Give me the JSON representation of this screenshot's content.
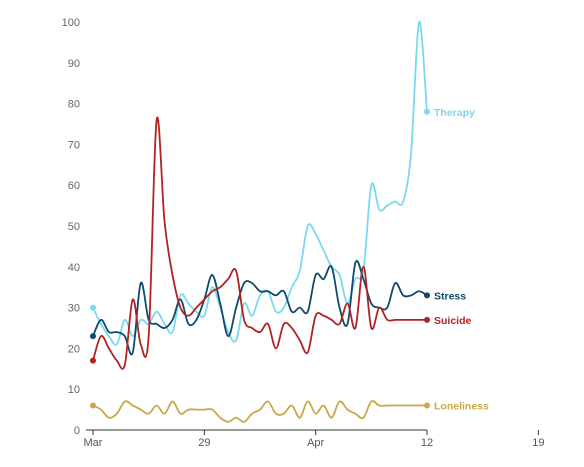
{
  "chart_data": {
    "type": "line",
    "title": "",
    "xlabel": "",
    "ylabel": "",
    "ylim": [
      0,
      100
    ],
    "y_ticks": [
      0,
      10,
      20,
      30,
      40,
      50,
      60,
      70,
      80,
      90,
      100
    ],
    "x_ticks": [
      {
        "day": 0,
        "label": "Mar"
      },
      {
        "day": 14,
        "label": "29"
      },
      {
        "day": 28,
        "label": "Apr"
      },
      {
        "day": 42,
        "label": "12"
      },
      {
        "day": 56,
        "label": "19"
      }
    ],
    "grid": false,
    "legend": "labels at line ends (right)",
    "series": [
      {
        "name": "Therapy",
        "color": "#7ad9ef",
        "values": [
          30,
          26,
          23,
          21,
          27,
          23,
          27,
          26,
          29,
          26,
          24,
          33,
          31,
          29,
          28,
          35,
          30,
          24,
          22,
          31,
          28,
          33,
          34,
          29,
          30,
          35,
          39,
          50,
          48,
          44,
          40,
          38,
          31,
          37,
          39,
          60,
          54,
          55,
          56,
          56,
          68,
          100,
          78
        ]
      },
      {
        "name": "Stress",
        "color": "#0d4a6b",
        "values": [
          23,
          27,
          24,
          24,
          23,
          19,
          36,
          27,
          26,
          25,
          27,
          32,
          26,
          27,
          32,
          38,
          31,
          23,
          30,
          36,
          36,
          34,
          34,
          33,
          34,
          29,
          30,
          29,
          38,
          37,
          40,
          30,
          26,
          41,
          37,
          31,
          30,
          30,
          36,
          33,
          33,
          34,
          33
        ]
      },
      {
        "name": "Suicide",
        "color": "#b22222",
        "values": [
          17,
          23,
          20,
          17,
          16,
          32,
          21,
          23,
          76,
          51,
          38,
          30,
          28,
          30,
          32,
          34,
          35,
          37,
          39,
          27,
          25,
          24,
          26,
          20,
          26,
          25,
          22,
          19,
          28,
          28,
          27,
          26,
          31,
          25,
          40,
          25,
          30,
          27,
          27,
          27,
          27,
          27,
          27
        ]
      },
      {
        "name": "Loneliness",
        "color": "#c9a84a",
        "values": [
          6,
          5,
          3,
          4,
          7,
          6,
          5,
          4,
          6,
          4,
          7,
          4,
          5,
          5,
          5,
          5,
          3,
          2,
          3,
          2,
          4,
          5,
          7,
          4,
          4,
          6,
          3,
          7,
          4,
          6,
          3,
          7,
          5,
          4,
          3,
          7,
          6,
          6,
          6,
          6,
          6,
          6,
          6
        ]
      }
    ]
  }
}
